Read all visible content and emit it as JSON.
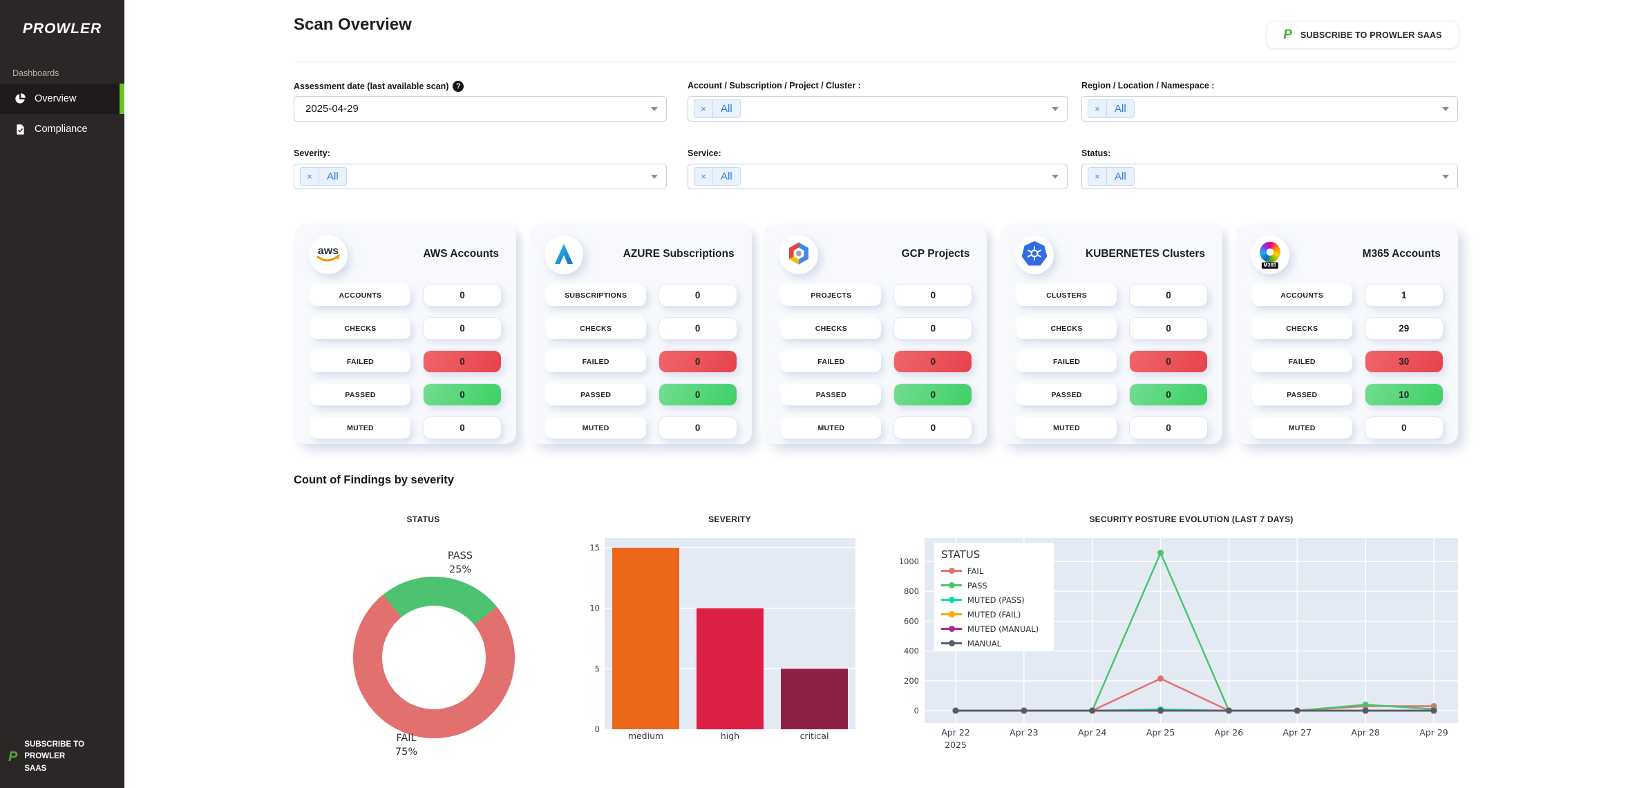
{
  "sidebar": {
    "logo": "PROWLER",
    "section_label": "Dashboards",
    "items": [
      {
        "label": "Overview",
        "active": true
      },
      {
        "label": "Compliance",
        "active": false
      }
    ],
    "subscribe_label": "SUBSCRIBE TO PROWLER SAAS",
    "accent_green": "#6cc226"
  },
  "header": {
    "title": "Scan Overview",
    "subscribe_button": "SUBSCRIBE TO PROWLER SAAS"
  },
  "filters": [
    {
      "label": "Assessment date (last available scan)",
      "help": "?",
      "type": "select",
      "value": "2025-04-29"
    },
    {
      "label": "Account / Subscription / Project / Cluster :",
      "type": "multiselect",
      "chip": "All",
      "chip_remove": "×"
    },
    {
      "label": "Region / Location / Namespace :",
      "type": "multiselect",
      "chip": "All",
      "chip_remove": "×"
    },
    {
      "label": "Severity:",
      "type": "multiselect",
      "chip": "All",
      "chip_remove": "×"
    },
    {
      "label": "Service:",
      "type": "multiselect",
      "chip": "All",
      "chip_remove": "×"
    },
    {
      "label": "Status:",
      "type": "multiselect",
      "chip": "All",
      "chip_remove": "×"
    }
  ],
  "provider_cards": [
    {
      "provider": "aws",
      "title": "AWS Accounts",
      "rows": [
        {
          "label": "ACCOUNTS",
          "value": "0",
          "style": "neutral"
        },
        {
          "label": "CHECKS",
          "value": "0",
          "style": "neutral"
        },
        {
          "label": "FAILED",
          "value": "0",
          "style": "fail"
        },
        {
          "label": "PASSED",
          "value": "0",
          "style": "pass"
        },
        {
          "label": "MUTED",
          "value": "0",
          "style": "neutral"
        }
      ]
    },
    {
      "provider": "azure",
      "title": "AZURE Subscriptions",
      "rows": [
        {
          "label": "SUBSCRIPTIONS",
          "value": "0",
          "style": "neutral"
        },
        {
          "label": "CHECKS",
          "value": "0",
          "style": "neutral"
        },
        {
          "label": "FAILED",
          "value": "0",
          "style": "fail"
        },
        {
          "label": "PASSED",
          "value": "0",
          "style": "pass"
        },
        {
          "label": "MUTED",
          "value": "0",
          "style": "neutral"
        }
      ]
    },
    {
      "provider": "gcp",
      "title": "GCP Projects",
      "rows": [
        {
          "label": "PROJECTS",
          "value": "0",
          "style": "neutral"
        },
        {
          "label": "CHECKS",
          "value": "0",
          "style": "neutral"
        },
        {
          "label": "FAILED",
          "value": "0",
          "style": "fail"
        },
        {
          "label": "PASSED",
          "value": "0",
          "style": "pass"
        },
        {
          "label": "MUTED",
          "value": "0",
          "style": "neutral"
        }
      ]
    },
    {
      "provider": "kubernetes",
      "title": "KUBERNETES Clusters",
      "rows": [
        {
          "label": "CLUSTERS",
          "value": "0",
          "style": "neutral"
        },
        {
          "label": "CHECKS",
          "value": "0",
          "style": "neutral"
        },
        {
          "label": "FAILED",
          "value": "0",
          "style": "fail"
        },
        {
          "label": "PASSED",
          "value": "0",
          "style": "pass"
        },
        {
          "label": "MUTED",
          "value": "0",
          "style": "neutral"
        }
      ]
    },
    {
      "provider": "m365",
      "title": "M365 Accounts",
      "icon_badge": "M365",
      "rows": [
        {
          "label": "ACCOUNTS",
          "value": "1",
          "style": "neutral"
        },
        {
          "label": "CHECKS",
          "value": "29",
          "style": "neutral"
        },
        {
          "label": "FAILED",
          "value": "30",
          "style": "fail"
        },
        {
          "label": "PASSED",
          "value": "10",
          "style": "pass"
        },
        {
          "label": "MUTED",
          "value": "0",
          "style": "neutral"
        }
      ]
    }
  ],
  "findings": {
    "heading": "Count of Findings by severity"
  },
  "status_colors": {
    "fail_red": "#e2706e",
    "pass_green": "#4dc271"
  },
  "chart_data": [
    {
      "type": "pie",
      "title": "STATUS",
      "hole": 0.64,
      "slices": [
        {
          "name": "FAIL",
          "pct": 75,
          "pct_label": "75%",
          "color": "#e2706e"
        },
        {
          "name": "PASS",
          "pct": 25,
          "pct_label": "25%",
          "color": "#4dc271"
        }
      ]
    },
    {
      "type": "bar",
      "title": "SEVERITY",
      "categories": [
        "medium",
        "high",
        "critical"
      ],
      "values": [
        15,
        10,
        5
      ],
      "colors": [
        "#ec671a",
        "#dc2045",
        "#8d2044"
      ],
      "yticks": [
        0,
        5,
        10,
        15
      ],
      "ylim": [
        0,
        15.8
      ],
      "plot_bg": "#e4eaf4",
      "grid": "white horizontal"
    },
    {
      "type": "line",
      "title": "SECURITY POSTURE EVOLUTION (LAST 7 DAYS)",
      "legend_title": "STATUS",
      "legend_position": "top-left inside plot",
      "x_labels": [
        "Apr 22",
        "Apr 23",
        "Apr 24",
        "Apr 25",
        "Apr 26",
        "Apr 27",
        "Apr 28",
        "Apr 29"
      ],
      "x_sub_label": "2025",
      "yticks": [
        0,
        200,
        400,
        600,
        800,
        1000
      ],
      "ylim": [
        0,
        1150
      ],
      "plot_bg": "#e4eaf4",
      "series": [
        {
          "name": "FAIL",
          "color": "#e2706e",
          "values": [
            0,
            0,
            0,
            215,
            0,
            0,
            30,
            30
          ]
        },
        {
          "name": "PASS",
          "color": "#46c56e",
          "values": [
            0,
            0,
            0,
            1058,
            0,
            0,
            40,
            10
          ]
        },
        {
          "name": "MUTED (PASS)",
          "color": "#00dcb3",
          "values": [
            0,
            0,
            0,
            8,
            0,
            0,
            0,
            0
          ]
        },
        {
          "name": "MUTED (FAIL)",
          "color": "#ffa600",
          "values": [
            0,
            0,
            0,
            0,
            0,
            0,
            0,
            0
          ]
        },
        {
          "name": "MUTED (MANUAL)",
          "color": "#ae2b90",
          "values": [
            0,
            0,
            0,
            0,
            0,
            0,
            0,
            0
          ]
        },
        {
          "name": "MANUAL",
          "color": "#555c67",
          "values": [
            0,
            0,
            0,
            0,
            0,
            0,
            0,
            0
          ]
        }
      ]
    }
  ]
}
